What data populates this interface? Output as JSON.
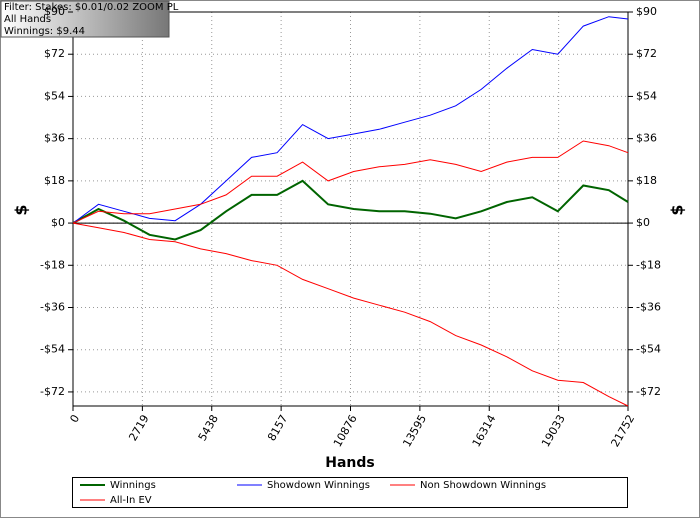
{
  "chart_data": {
    "type": "line",
    "info": [
      "Filter: Stakes: $0.01/0.02 ZOOM PL",
      "All Hands",
      "Winnings: $9.44"
    ],
    "xlabel": "Hands",
    "ylabel": "$",
    "x": [
      0,
      1000,
      2000,
      3000,
      4000,
      5000,
      6000,
      7000,
      8000,
      9000,
      10000,
      11000,
      12000,
      13000,
      14000,
      15000,
      16000,
      17000,
      18000,
      19000,
      20000,
      21000,
      21752
    ],
    "series": [
      {
        "name": "Winnings",
        "color": "#006400",
        "values": [
          0,
          6,
          1,
          -5,
          -7,
          -3,
          5,
          12,
          12,
          18,
          8,
          6,
          5,
          5,
          4,
          2,
          5,
          9,
          11,
          5,
          16,
          14,
          9
        ]
      },
      {
        "name": "Showdown Winnings",
        "color": "#0000ff",
        "values": [
          0,
          8,
          5,
          2,
          1,
          8,
          18,
          28,
          30,
          42,
          36,
          38,
          40,
          43,
          46,
          50,
          57,
          66,
          74,
          72,
          84,
          88,
          87
        ]
      },
      {
        "name": "Non Showdown Winnings",
        "color": "#ff0000",
        "values": [
          0,
          -2,
          -4,
          -7,
          -8,
          -11,
          -13,
          -16,
          -18,
          -24,
          -28,
          -32,
          -35,
          -38,
          -42,
          -48,
          -52,
          -57,
          -63,
          -67,
          -68,
          -74,
          -78
        ]
      },
      {
        "name": "All-In EV",
        "color": "#ff0000",
        "values": [
          0,
          5,
          4,
          4,
          6,
          8,
          12,
          20,
          20,
          26,
          18,
          22,
          24,
          25,
          27,
          25,
          22,
          26,
          28,
          28,
          35,
          33,
          30
        ]
      }
    ],
    "xlim": [
      0,
      21752
    ],
    "xticks": [
      0,
      2719,
      5438,
      8157,
      10876,
      13595,
      16314,
      19033,
      21752
    ],
    "ylim": [
      -78,
      90
    ],
    "yticks": [
      {
        "value": -72,
        "label": "-$72"
      },
      {
        "value": -54,
        "label": "-$54"
      },
      {
        "value": -36,
        "label": "-$36"
      },
      {
        "value": -18,
        "label": "-$18"
      },
      {
        "value": 0,
        "label": "$0"
      },
      {
        "value": 18,
        "label": "$18"
      },
      {
        "value": 36,
        "label": "$36"
      },
      {
        "value": 54,
        "label": "$54"
      },
      {
        "value": 72,
        "label": "$72"
      },
      {
        "value": 90,
        "label": "$90"
      }
    ],
    "grid": true
  }
}
